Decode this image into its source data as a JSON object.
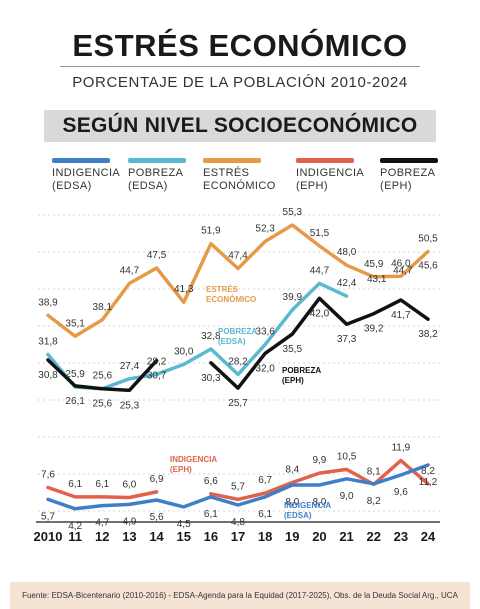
{
  "header": {
    "title": "ESTRÉS ECONÓMICO",
    "subtitle": "PORCENTAJE DE LA POBLACIÓN 2010-2024",
    "section": "SEGÚN NIVEL SOCIOECONÓMICO"
  },
  "legend": [
    {
      "label": "INDIGENCIA\n(EDSA)",
      "color": "#3f7fc8"
    },
    {
      "label": "POBREZA\n(EDSA)",
      "color": "#5ab8d1"
    },
    {
      "label": "ESTRÉS\nECONÓMICO",
      "color": "#e69a47"
    },
    {
      "label": "INDIGENCIA\n(EPH)",
      "color": "#e0624a"
    },
    {
      "label": "POBREZA\n(EPH)",
      "color": "#111111"
    }
  ],
  "chart_data": {
    "type": "line",
    "categories": [
      "2010",
      "11",
      "12",
      "13",
      "14",
      "15",
      "16",
      "17",
      "18",
      "19",
      "20",
      "21",
      "22",
      "23",
      "24"
    ],
    "ylim": [
      0,
      60
    ],
    "grid": "dotted horizontal",
    "series": [
      {
        "name": "ESTRÉS ECONÓMICO",
        "color": "#e69a47",
        "values": [
          38.9,
          35.1,
          38.1,
          44.7,
          47.5,
          41.3,
          51.9,
          47.4,
          52.3,
          55.3,
          51.5,
          48.0,
          45.9,
          46.0,
          50.5
        ],
        "labels": [
          "38,9",
          "35,1",
          "38,1",
          "44,7",
          "47,5",
          "41,3",
          "51,9",
          "47,4",
          "52,3",
          "55,3",
          "51,5",
          "48,0",
          "45,9",
          "46,0",
          "50,5"
        ],
        "annotation": "ESTRÉS\nECONÓMICO"
      },
      {
        "name": "POBREZA (EDSA)",
        "color": "#5ab8d1",
        "values": [
          31.8,
          25.9,
          25.6,
          27.4,
          28.2,
          30.0,
          32.8,
          28.2,
          33.6,
          39.9,
          44.7,
          42.4,
          null,
          null,
          45.6
        ],
        "labels": [
          "31,8",
          "25,9",
          "25,6",
          "27,4",
          "28,2",
          "30,0",
          "32,8",
          "28,2",
          "33,6",
          "39,9",
          "44,7",
          "42,4",
          "",
          "",
          "45,6"
        ],
        "annotation": "POBREZA\n(EDSA)"
      },
      {
        "name": "POBREZA (EPH)",
        "color": "#111111",
        "values": [
          30.8,
          26.1,
          25.6,
          25.3,
          30.7,
          null,
          30.3,
          25.7,
          32.0,
          35.5,
          42.0,
          37.3,
          39.2,
          41.7,
          38.2
        ],
        "labels": [
          "30,8",
          "26,1",
          "25,6",
          "25,3",
          "30,7",
          "",
          "30,3",
          "25,7",
          "32,0",
          "35,5",
          "42,0",
          "37,3",
          "39,2",
          "41,7",
          "38,2"
        ],
        "extra_labels": [
          "43,1",
          "44,7"
        ],
        "annotation": "POBREZA\n(EPH)"
      },
      {
        "name": "INDIGENCIA (EPH)",
        "color": "#e0624a",
        "values": [
          7.6,
          6.1,
          6.1,
          6.0,
          6.9,
          null,
          6.6,
          5.7,
          6.7,
          8.4,
          9.9,
          10.5,
          8.1,
          11.9,
          8.2
        ],
        "labels": [
          "7,6",
          "6,1",
          "6,1",
          "6,0",
          "6,9",
          "",
          "6,6",
          "5,7",
          "6,7",
          "8,4",
          "9,9",
          "10,5",
          "8,1",
          "11,9",
          "8,2"
        ],
        "annotation": "INDIGENCIA\n(EPH)"
      },
      {
        "name": "INDIGENCIA (EDSA)",
        "color": "#3f7fc8",
        "values": [
          5.7,
          4.2,
          4.7,
          4.9,
          5.6,
          4.5,
          6.1,
          4.8,
          6.1,
          8.0,
          8.0,
          9.0,
          8.2,
          9.6,
          11.2
        ],
        "labels": [
          "5,7",
          "4,2",
          "4,7",
          "4,9",
          "5,6",
          "4,5",
          "6,1",
          "4,8",
          "6,1",
          "8,0",
          "8,0",
          "9,0",
          "8,2",
          "9,6",
          "11,2"
        ],
        "annotation": "INDIGENCIA\n(EDSA)"
      }
    ]
  },
  "footer": {
    "source": "Fuente: EDSA-Bicentenario (2010-2016) - EDSA-Agenda para la Equidad (2017-2025), Obs. de la Deuda Social Arg., UCA"
  }
}
